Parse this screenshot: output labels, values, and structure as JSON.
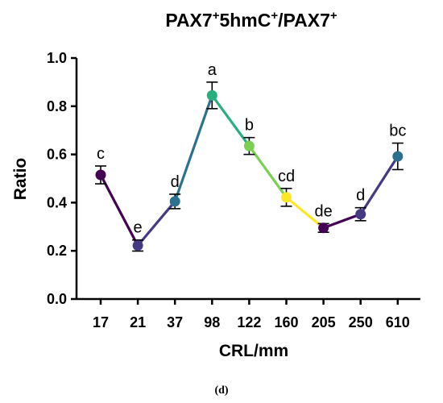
{
  "chart_data": {
    "type": "line",
    "title_parts": [
      "PAX7",
      "+",
      "5hmC",
      "+",
      "/PAX7",
      "+"
    ],
    "xlabel": "CRL/mm",
    "ylabel": "Ratio",
    "categories": [
      "17",
      "21",
      "37",
      "98",
      "122",
      "160",
      "205",
      "250",
      "610"
    ],
    "series": [
      {
        "values": [
          0.515,
          0.222,
          0.405,
          0.845,
          0.635,
          0.422,
          0.295,
          0.352,
          0.592
        ],
        "error": [
          0.037,
          0.023,
          0.03,
          0.055,
          0.035,
          0.037,
          0.018,
          0.027,
          0.055
        ],
        "letters": [
          "c",
          "e",
          "d",
          "a",
          "b",
          "cd",
          "de",
          "d",
          "bc"
        ],
        "point_colors": [
          "#440154",
          "#443a83",
          "#2c728e",
          "#29af7f",
          "#7ad151",
          "#fde725",
          "#440154",
          "#443983",
          "#2c6f8e"
        ]
      }
    ],
    "ylim": [
      0,
      1.0
    ],
    "yticks": [
      "0.0",
      "0.2",
      "0.4",
      "0.6",
      "0.8",
      "1.0"
    ],
    "grid": false,
    "legend": "none"
  },
  "caption": "(d)"
}
